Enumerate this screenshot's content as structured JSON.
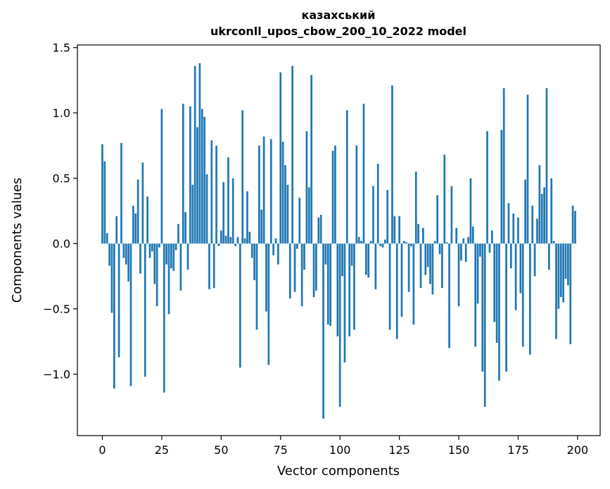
{
  "chart_data": {
    "type": "bar",
    "title": [
      "казахський",
      "ukrconll_upos_cbow_200_10_2022 model"
    ],
    "xlabel": "Vector components",
    "ylabel": "Components values",
    "xlim": [
      -10.5,
      209.5
    ],
    "ylim": [
      -1.47,
      1.52
    ],
    "xticks": [
      0,
      25,
      50,
      75,
      100,
      125,
      150,
      175,
      200
    ],
    "xtick_labels": [
      "0",
      "25",
      "50",
      "75",
      "100",
      "125",
      "150",
      "175",
      "200"
    ],
    "yticks": [
      -1.0,
      -0.5,
      0.0,
      0.5,
      1.0,
      1.5
    ],
    "ytick_labels": [
      "−1.0",
      "−0.5",
      "0.0",
      "0.5",
      "1.0",
      "1.5"
    ],
    "bar_color": "#1f77b4",
    "grid": false,
    "values": [
      0.76,
      0.63,
      0.08,
      -0.17,
      -0.53,
      -1.11,
      0.21,
      -0.87,
      0.77,
      -0.11,
      -0.16,
      -0.29,
      -1.09,
      0.29,
      0.23,
      0.49,
      -0.23,
      0.62,
      -1.02,
      0.36,
      -0.11,
      -0.06,
      -0.31,
      -0.48,
      -0.03,
      1.03,
      -1.14,
      -0.16,
      -0.54,
      -0.19,
      -0.21,
      -0.05,
      0.15,
      -0.36,
      1.07,
      0.24,
      -0.2,
      1.05,
      0.45,
      1.36,
      0.89,
      1.38,
      1.03,
      0.97,
      0.53,
      -0.35,
      0.79,
      -0.34,
      0.75,
      -0.02,
      0.1,
      0.47,
      0.06,
      0.66,
      0.05,
      0.5,
      -0.02,
      0.05,
      -0.95,
      1.02,
      0.04,
      0.4,
      0.09,
      -0.11,
      -0.28,
      -0.66,
      0.75,
      0.26,
      0.82,
      -0.52,
      -0.93,
      0.8,
      -0.09,
      0.04,
      -0.16,
      1.31,
      0.78,
      0.6,
      0.45,
      -0.42,
      1.36,
      -0.37,
      -0.04,
      0.35,
      -0.48,
      -0.2,
      0.86,
      0.43,
      1.29,
      -0.41,
      -0.36,
      0.2,
      0.22,
      -1.34,
      -0.16,
      -0.62,
      -0.63,
      0.71,
      0.75,
      -0.71,
      -1.25,
      -0.25,
      -0.91,
      1.02,
      -0.71,
      -0.17,
      -0.66,
      0.75,
      0.05,
      0.02,
      1.07,
      -0.24,
      -0.26,
      0.02,
      0.44,
      -0.35,
      0.61,
      -0.02,
      -0.03,
      0.03,
      0.41,
      -0.66,
      1.21,
      0.21,
      -0.73,
      0.21,
      -0.56,
      0.02,
      0.01,
      -0.37,
      -0.02,
      -0.62,
      0.55,
      0.15,
      -0.34,
      0.12,
      -0.24,
      -0.18,
      -0.31,
      -0.39,
      0.02,
      0.37,
      -0.08,
      -0.34,
      0.68,
      0.01,
      -0.8,
      0.44,
      0.0,
      0.12,
      -0.48,
      -0.13,
      0.04,
      -0.14,
      0.05,
      0.5,
      0.13,
      -0.79,
      -0.46,
      -0.1,
      -0.98,
      -1.25,
      0.86,
      -0.07,
      0.1,
      -0.6,
      -0.76,
      -1.05,
      0.87,
      1.19,
      -0.98,
      0.31,
      -0.19,
      0.23,
      -0.51,
      0.2,
      -0.38,
      -0.79,
      0.49,
      1.14,
      -0.85,
      0.29,
      -0.25,
      0.19,
      0.6,
      0.38,
      0.43,
      1.19,
      -0.2,
      0.5,
      0.02,
      -0.73,
      -0.5,
      -0.41,
      -0.45,
      -0.27,
      -0.32,
      -0.77,
      0.29,
      0.25
    ]
  }
}
